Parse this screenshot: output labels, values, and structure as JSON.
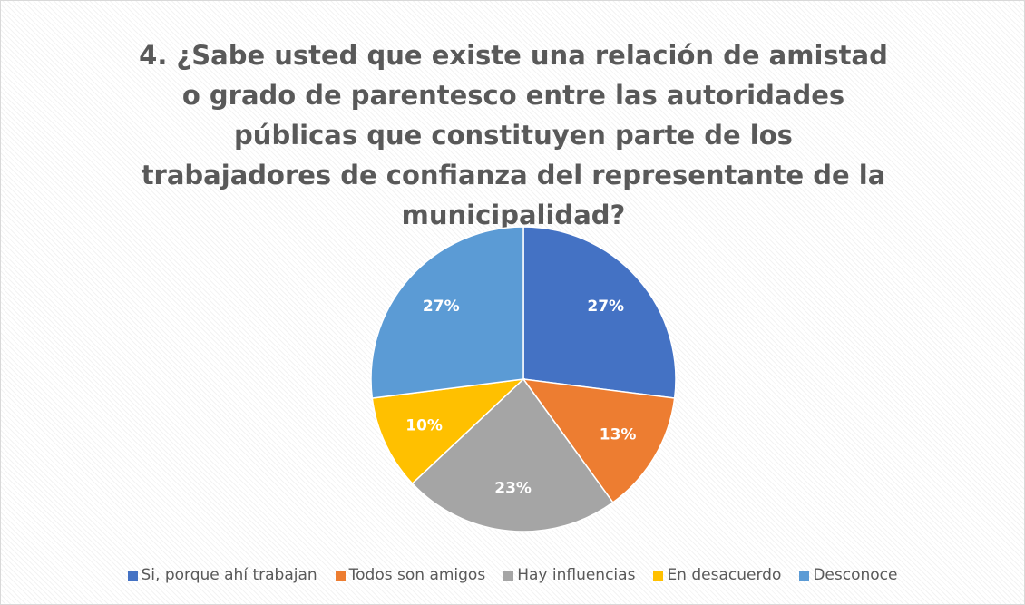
{
  "chart_data": {
    "type": "pie",
    "title": "4. ¿Sabe usted que existe una relación de amistad o grado de parentesco entre las autoridades públicas que constituyen parte de los trabajadores de confianza del representante de la municipalidad?",
    "categories": [
      "Si, porque ahí trabajan",
      "Todos son amigos",
      "Hay influencias",
      "En desacuerdo",
      "Desconoce"
    ],
    "values": [
      27,
      13,
      23,
      10,
      27
    ],
    "value_labels": [
      "27%",
      "13%",
      "23%",
      "10%",
      "27%"
    ],
    "colors": [
      "#4472c4",
      "#ed7d31",
      "#a5a5a5",
      "#ffc000",
      "#5b9bd5"
    ],
    "legend": "bottom"
  }
}
